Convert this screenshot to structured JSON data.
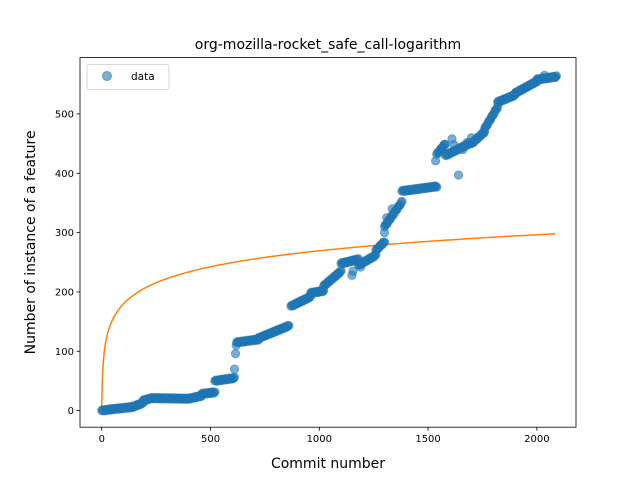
{
  "chart_data": {
    "type": "scatter",
    "title": "org-mozilla-rocket_safe_call-logarithm",
    "xlabel": "Commit number",
    "ylabel": "Number of instance of a feature",
    "xlim": [
      -100,
      2180
    ],
    "ylim": [
      -28,
      595
    ],
    "xticks": [
      0,
      500,
      1000,
      1500,
      2000
    ],
    "yticks": [
      0,
      100,
      200,
      300,
      400,
      500
    ],
    "grid": false,
    "legend": {
      "position": "top-left",
      "entries": [
        "data"
      ]
    },
    "colors": {
      "data": "#1f77b4",
      "fit": "#ff7f0e"
    },
    "series": [
      {
        "name": "data",
        "kind": "scatter",
        "segments": [
          {
            "x0": 0,
            "x1": 40,
            "y0": 0,
            "y1": 2
          },
          {
            "x0": 40,
            "x1": 140,
            "y0": 2,
            "y1": 6
          },
          {
            "x0": 140,
            "x1": 190,
            "y0": 6,
            "y1": 13
          },
          {
            "x0": 190,
            "x1": 230,
            "y0": 17,
            "y1": 21
          },
          {
            "x0": 230,
            "x1": 400,
            "y0": 21,
            "y1": 20
          },
          {
            "x0": 400,
            "x1": 460,
            "y0": 20,
            "y1": 25
          },
          {
            "x0": 460,
            "x1": 520,
            "y0": 28,
            "y1": 31
          },
          {
            "x0": 520,
            "x1": 610,
            "y0": 50,
            "y1": 55
          },
          {
            "x0": 620,
            "x1": 720,
            "y0": 115,
            "y1": 120
          },
          {
            "x0": 720,
            "x1": 860,
            "y0": 122,
            "y1": 143
          },
          {
            "x0": 870,
            "x1": 960,
            "y0": 176,
            "y1": 192
          },
          {
            "x0": 960,
            "x1": 1020,
            "y0": 198,
            "y1": 202
          },
          {
            "x0": 1020,
            "x1": 1100,
            "y0": 210,
            "y1": 235
          },
          {
            "x0": 1100,
            "x1": 1180,
            "y0": 248,
            "y1": 255
          },
          {
            "x0": 1180,
            "x1": 1260,
            "y0": 245,
            "y1": 262
          },
          {
            "x0": 1260,
            "x1": 1300,
            "y0": 270,
            "y1": 285
          },
          {
            "x0": 1300,
            "x1": 1380,
            "y0": 310,
            "y1": 352
          },
          {
            "x0": 1380,
            "x1": 1540,
            "y0": 370,
            "y1": 378
          },
          {
            "x0": 1540,
            "x1": 1580,
            "y0": 432,
            "y1": 450
          },
          {
            "x0": 1580,
            "x1": 1700,
            "y0": 430,
            "y1": 452
          },
          {
            "x0": 1700,
            "x1": 1760,
            "y0": 450,
            "y1": 470
          },
          {
            "x0": 1760,
            "x1": 1820,
            "y0": 475,
            "y1": 512
          },
          {
            "x0": 1820,
            "x1": 1900,
            "y0": 520,
            "y1": 532
          },
          {
            "x0": 1900,
            "x1": 2000,
            "y0": 535,
            "y1": 555
          },
          {
            "x0": 2000,
            "x1": 2090,
            "y0": 558,
            "y1": 563
          }
        ],
        "points": [
          [
            610,
            70
          ],
          [
            615,
            96
          ],
          [
            618,
            110
          ],
          [
            1300,
            300
          ],
          [
            1310,
            325
          ],
          [
            1335,
            340
          ],
          [
            1535,
            421
          ],
          [
            1555,
            438
          ],
          [
            1610,
            458
          ],
          [
            1620,
            448
          ],
          [
            1640,
            397
          ],
          [
            1660,
            440
          ],
          [
            1680,
            452
          ],
          [
            1700,
            460
          ],
          [
            1150,
            228
          ],
          [
            1155,
            235
          ],
          [
            1190,
            242
          ],
          [
            2035,
            565
          ],
          [
            2060,
            562
          ],
          [
            2085,
            562
          ]
        ]
      },
      {
        "name": "",
        "kind": "line",
        "model": "logarithmic",
        "x_range": [
          0,
          2085
        ],
        "coefficient": 40.5,
        "y_at_x_max": 298
      }
    ]
  }
}
